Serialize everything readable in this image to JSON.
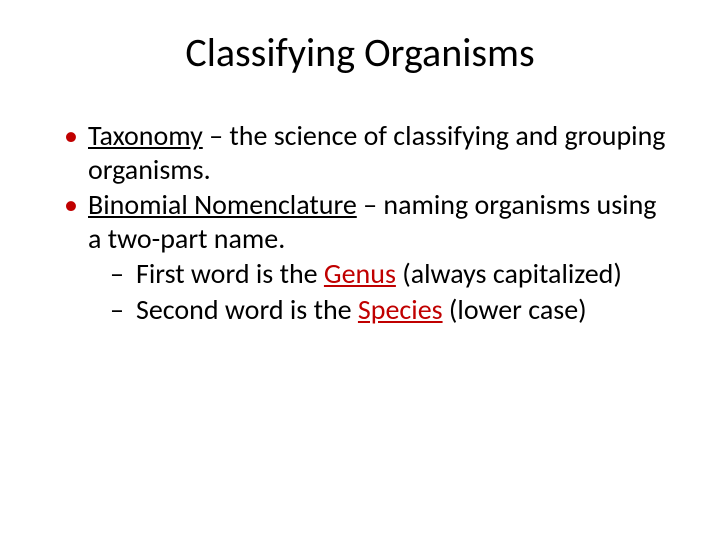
{
  "colors": {
    "accent": "#c00000",
    "text": "#000000",
    "background": "#ffffff"
  },
  "typography": {
    "title_fontsize": 40,
    "body_fontsize": 28,
    "font_family": "Calibri"
  },
  "title": "Classifying Organisms",
  "bullets": [
    {
      "term": "Taxonomy",
      "rest": " – the science of classifying and grouping organisms."
    },
    {
      "term": "Binomial Nomenclature",
      "rest": " – naming organisms using a two-part name.",
      "sub": [
        {
          "pre": "First word is the ",
          "term": "Genus",
          "post": " (always capitalized)"
        },
        {
          "pre": "Second word is the ",
          "term": "Species",
          "post": " (lower case)"
        }
      ]
    }
  ]
}
